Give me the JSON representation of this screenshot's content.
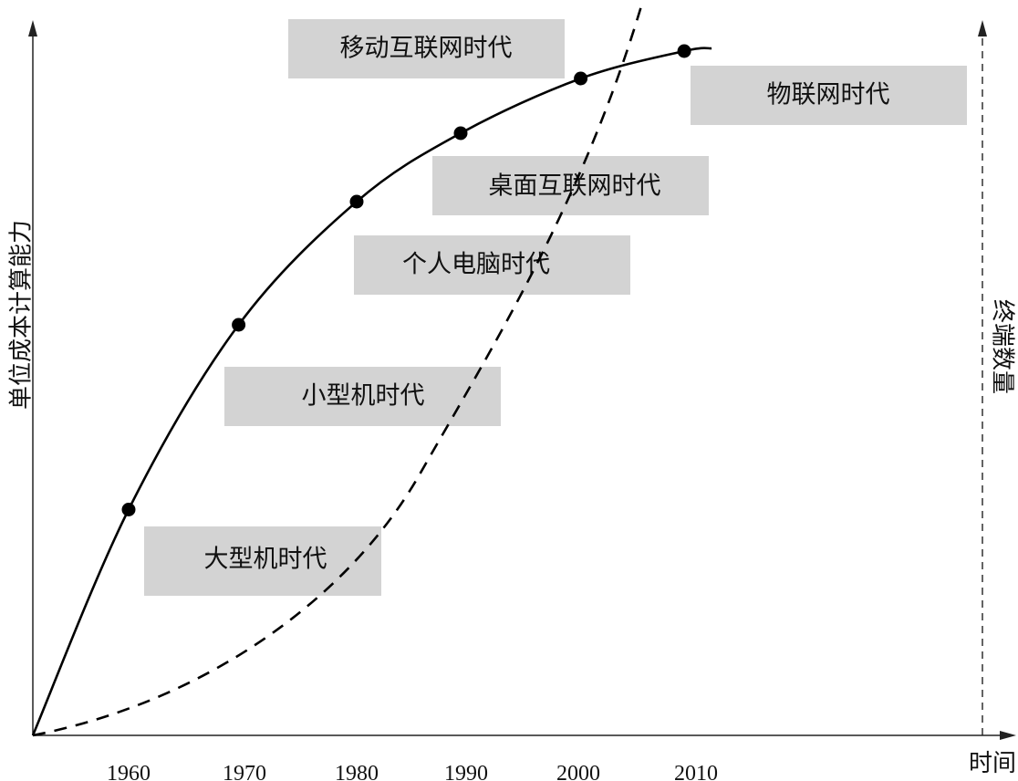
{
  "chart_data": {
    "type": "line",
    "x_axis": {
      "label": "时间",
      "ticks": [
        1960,
        1970,
        1980,
        1990,
        2000,
        2010
      ]
    },
    "y_axis_left": {
      "label": "单位成本计算能力"
    },
    "y_axis_right": {
      "label": "终端数量"
    },
    "grid": false,
    "series": [
      {
        "style": "solid",
        "points": [
          {
            "x": 1960,
            "y": 0.33
          },
          {
            "x": 1969.5,
            "y": 0.6
          },
          {
            "x": 1980,
            "y": 0.78
          },
          {
            "x": 1989.5,
            "y": 0.88
          },
          {
            "x": 2000.2,
            "y": 0.96
          },
          {
            "x": 2009,
            "y": 1.0
          }
        ]
      },
      {
        "style": "dashed"
      }
    ],
    "annotations": [
      {
        "text": "移动互联网时代"
      },
      {
        "text": "物联网时代"
      },
      {
        "text": "桌面互联网时代"
      },
      {
        "text": "个人电脑时代"
      },
      {
        "text": "小型机时代"
      },
      {
        "text": "大型机时代"
      }
    ]
  }
}
